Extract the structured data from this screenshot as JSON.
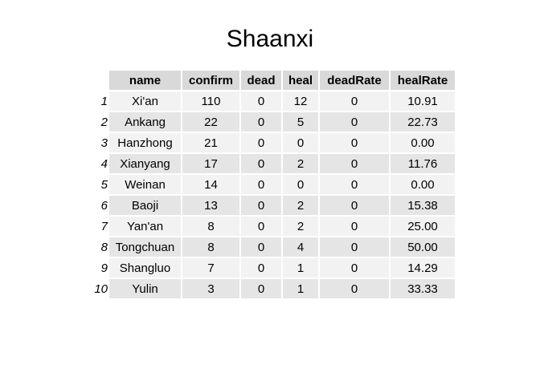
{
  "chart_data": {
    "type": "table",
    "title": "Shaanxi",
    "columns": [
      "name",
      "confirm",
      "dead",
      "heal",
      "deadRate",
      "healRate"
    ],
    "rows": [
      {
        "index": "1",
        "name": "Xi'an",
        "confirm": "110",
        "dead": "0",
        "heal": "12",
        "deadRate": "0",
        "healRate": "10.91"
      },
      {
        "index": "2",
        "name": "Ankang",
        "confirm": "22",
        "dead": "0",
        "heal": "5",
        "deadRate": "0",
        "healRate": "22.73"
      },
      {
        "index": "3",
        "name": "Hanzhong",
        "confirm": "21",
        "dead": "0",
        "heal": "0",
        "deadRate": "0",
        "healRate": "0.00"
      },
      {
        "index": "4",
        "name": "Xianyang",
        "confirm": "17",
        "dead": "0",
        "heal": "2",
        "deadRate": "0",
        "healRate": "11.76"
      },
      {
        "index": "5",
        "name": "Weinan",
        "confirm": "14",
        "dead": "0",
        "heal": "0",
        "deadRate": "0",
        "healRate": "0.00"
      },
      {
        "index": "6",
        "name": "Baoji",
        "confirm": "13",
        "dead": "0",
        "heal": "2",
        "deadRate": "0",
        "healRate": "15.38"
      },
      {
        "index": "7",
        "name": "Yan'an",
        "confirm": "8",
        "dead": "0",
        "heal": "2",
        "deadRate": "0",
        "healRate": "25.00"
      },
      {
        "index": "8",
        "name": "Tongchuan",
        "confirm": "8",
        "dead": "0",
        "heal": "4",
        "deadRate": "0",
        "healRate": "50.00"
      },
      {
        "index": "9",
        "name": "Shangluo",
        "confirm": "7",
        "dead": "0",
        "heal": "1",
        "deadRate": "0",
        "healRate": "14.29"
      },
      {
        "index": "10",
        "name": "Yulin",
        "confirm": "3",
        "dead": "0",
        "heal": "1",
        "deadRate": "0",
        "healRate": "33.33"
      }
    ]
  }
}
